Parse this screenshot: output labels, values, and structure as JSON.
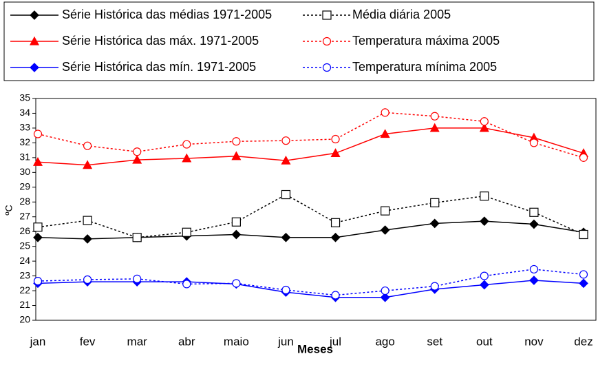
{
  "chart_data": {
    "type": "line",
    "categories": [
      "jan",
      "fev",
      "mar",
      "abr",
      "maio",
      "jun",
      "jul",
      "ago",
      "set",
      "out",
      "nov",
      "dez"
    ],
    "y_label": "ºC",
    "x_label": "Meses",
    "ylim": [
      20,
      35
    ],
    "yticks": [
      20,
      21,
      22,
      23,
      24,
      25,
      26,
      27,
      28,
      29,
      30,
      31,
      32,
      33,
      34,
      35
    ],
    "series": [
      {
        "name": "Série Histórica das médias 1971-2005",
        "color": "#000000",
        "marker": "diamond",
        "line_style": "solid",
        "values": [
          25.6,
          25.5,
          25.6,
          25.7,
          25.8,
          25.6,
          25.6,
          26.1,
          26.55,
          26.7,
          26.5,
          25.95
        ]
      },
      {
        "name": "Média diária 2005",
        "color": "#000000",
        "marker": "square",
        "line_style": "dotted",
        "values": [
          26.3,
          26.75,
          25.6,
          25.95,
          26.65,
          28.5,
          26.6,
          27.4,
          27.95,
          28.4,
          27.3,
          25.8
        ]
      },
      {
        "name": "Série Histórica das máx. 1971-2005",
        "color": "#ff0000",
        "marker": "triangle",
        "line_style": "solid",
        "values": [
          30.7,
          30.5,
          30.85,
          30.95,
          31.1,
          30.8,
          31.3,
          32.6,
          33.0,
          33.0,
          32.35,
          31.3
        ]
      },
      {
        "name": "Temperatura máxima 2005",
        "color": "#ff0000",
        "marker": "circle",
        "line_style": "dotted",
        "values": [
          32.6,
          31.8,
          31.4,
          31.9,
          32.1,
          32.15,
          32.25,
          34.05,
          33.8,
          33.45,
          32.0,
          31.0
        ]
      },
      {
        "name": "Série Histórica das mín. 1971-2005",
        "color": "#0000ff",
        "marker": "diamond",
        "line_style": "solid",
        "values": [
          22.5,
          22.6,
          22.6,
          22.6,
          22.45,
          21.9,
          21.55,
          21.55,
          22.1,
          22.4,
          22.7,
          22.5
        ]
      },
      {
        "name": "Temperatura mínima 2005",
        "color": "#0000ff",
        "marker": "circle",
        "line_style": "dotted",
        "values": [
          22.65,
          22.75,
          22.8,
          22.45,
          22.5,
          22.05,
          21.7,
          22.0,
          22.3,
          23.0,
          23.45,
          23.1
        ]
      }
    ]
  }
}
